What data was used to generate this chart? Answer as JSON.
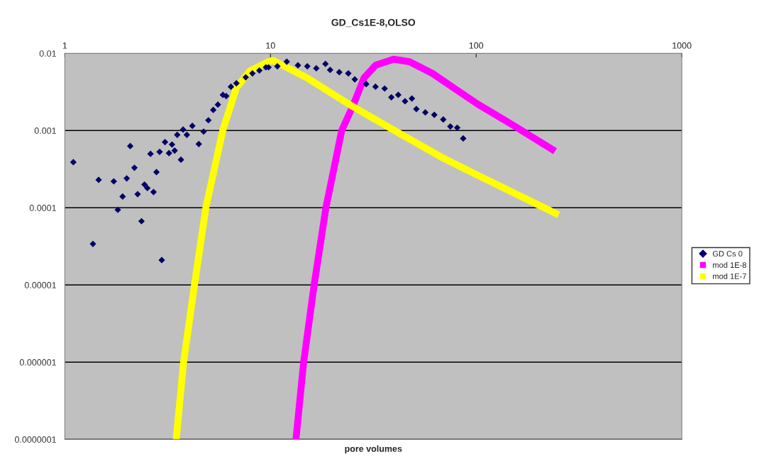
{
  "chart_data": {
    "type": "scatter",
    "title": "GD_Cs1E-8,OLSO",
    "xlabel": "pore volumes",
    "log": "xy",
    "grid": "y",
    "legend": "right",
    "xlim": [
      1,
      1000
    ],
    "ylim": [
      1e-07,
      0.01
    ],
    "xticks": [
      1,
      10,
      100,
      1000
    ],
    "yticks": [
      0.01,
      0.001,
      0.0001,
      {
        "value": 1e-05,
        "label": "0.00001"
      },
      {
        "value": 1e-06,
        "label": "0.000001"
      },
      {
        "value": 1e-07,
        "label": "0.0000001"
      }
    ],
    "series": [
      {
        "name": "GD Cs 0",
        "marker": "diamond",
        "color": "#000066",
        "x": [
          1.1,
          1.37,
          1.46,
          1.73,
          1.81,
          1.91,
          2.0,
          2.08,
          2.18,
          2.26,
          2.36,
          2.44,
          2.52,
          2.61,
          2.7,
          2.79,
          2.89,
          2.96,
          3.07,
          3.21,
          3.32,
          3.42,
          3.52,
          3.67,
          3.76,
          3.92,
          4.17,
          4.48,
          4.73,
          4.99,
          5.27,
          5.55,
          5.87,
          6.09,
          6.42,
          6.83,
          7.58,
          8.17,
          8.83,
          9.5,
          9.78,
          10.8,
          12.0,
          13.6,
          15.1,
          16.7,
          18.5,
          19.5,
          21.6,
          23.9,
          25.7,
          29.2,
          32.4,
          35.9,
          38.7,
          41.8,
          45.1,
          48.7,
          51.2,
          56.6,
          62.6,
          69.2,
          74.9,
          80.9,
          86.5
        ],
        "values": [
          0.00039,
          3.4e-05,
          0.00023,
          0.00022,
          9.4e-05,
          0.00014,
          0.00024,
          0.00063,
          0.00033,
          0.00015,
          6.7e-05,
          0.0002,
          0.00018,
          0.0005,
          0.00016,
          0.00029,
          0.00053,
          2.1e-05,
          0.00071,
          0.00051,
          0.00066,
          0.00055,
          0.00088,
          0.00042,
          0.00103,
          0.00088,
          0.00115,
          0.00067,
          0.00097,
          0.00136,
          0.00185,
          0.00217,
          0.0029,
          0.0028,
          0.0037,
          0.0041,
          0.0049,
          0.0055,
          0.006,
          0.0066,
          0.0066,
          0.0068,
          0.0078,
          0.007,
          0.0068,
          0.0064,
          0.0073,
          0.0061,
          0.0057,
          0.0055,
          0.0046,
          0.004,
          0.0037,
          0.0035,
          0.0027,
          0.0029,
          0.0024,
          0.0026,
          0.0019,
          0.00172,
          0.0016,
          0.00139,
          0.00113,
          0.00109,
          0.00079
        ]
      },
      {
        "name": "mod 1E-8",
        "type": "line",
        "marker": "none",
        "color": "#ff00ff",
        "x": [
          13.3,
          14.5,
          16.3,
          18.6,
          22.2,
          25.1,
          28.5,
          32.4,
          39.7,
          47.4,
          61.3,
          78.6,
          101.8,
          153,
          242
        ],
        "values": [
          1e-07,
          1e-06,
          1e-05,
          0.0001,
          0.001,
          0.00205,
          0.0048,
          0.007,
          0.0084,
          0.0078,
          0.0055,
          0.0035,
          0.0022,
          0.00115,
          0.00054
        ]
      },
      {
        "name": "mod 1E-7",
        "type": "line",
        "marker": "none",
        "color": "#ffff00",
        "x": [
          3.48,
          3.78,
          4.27,
          4.85,
          5.86,
          6.83,
          7.93,
          9.77,
          10.3,
          15.1,
          25.1,
          41.8,
          69.2,
          100,
          252
        ],
        "values": [
          1e-07,
          1e-06,
          1e-05,
          0.0001,
          0.001,
          0.0036,
          0.0059,
          0.0078,
          0.0081,
          0.0048,
          0.00205,
          0.00094,
          0.00044,
          0.00027,
          8.1e-05
        ]
      }
    ]
  }
}
